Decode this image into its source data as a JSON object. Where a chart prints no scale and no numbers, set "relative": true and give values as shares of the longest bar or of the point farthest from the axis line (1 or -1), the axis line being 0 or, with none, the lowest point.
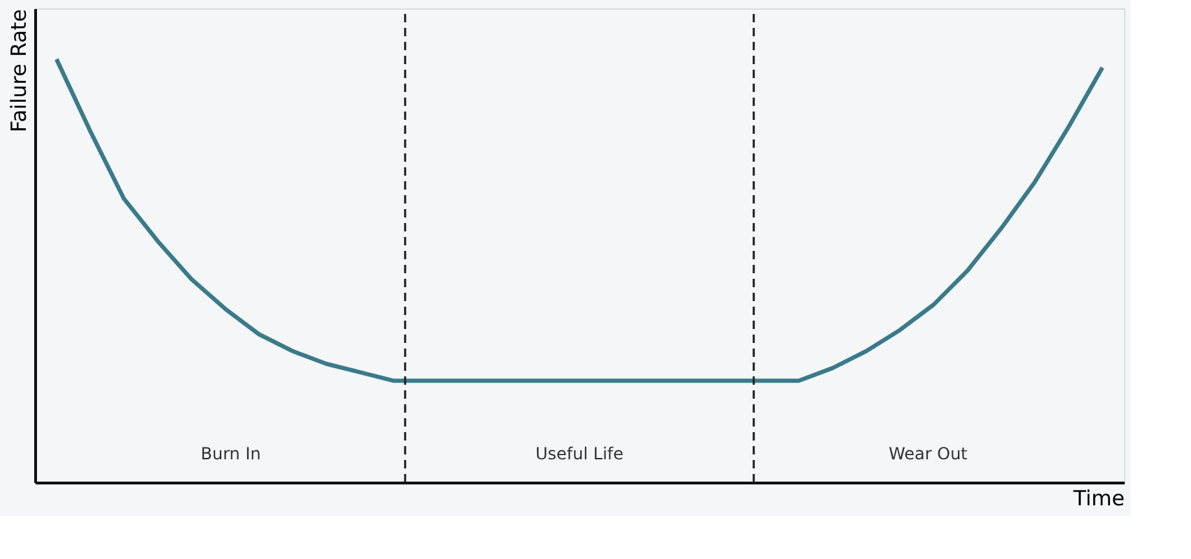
{
  "chart_data": {
    "type": "line",
    "relative": true,
    "xlabel": "Time",
    "ylabel": "Failure Rate",
    "legend": false,
    "marker": "none",
    "line_style": "solid",
    "categories": [
      null,
      null,
      null,
      null,
      null,
      null,
      null,
      null,
      null,
      null,
      null,
      null,
      null,
      null,
      null,
      null,
      null,
      null,
      null,
      null,
      null,
      null,
      null,
      null,
      null,
      null,
      null,
      null,
      null,
      null,
      null,
      null
    ],
    "series": [
      {
        "color": "#3a7a8a",
        "values": [
          1.0,
          0.83,
          0.67,
          0.57,
          0.48,
          0.41,
          0.35,
          0.31,
          0.28,
          0.26,
          0.24,
          0.24,
          0.24,
          0.24,
          0.24,
          0.24,
          0.24,
          0.24,
          0.24,
          0.24,
          0.24,
          0.24,
          0.24,
          0.27,
          0.31,
          0.36,
          0.42,
          0.5,
          0.6,
          0.71,
          0.84,
          0.98
        ]
      }
    ],
    "annotations": [
      "Burn In",
      "Useful Life",
      "Wear Out"
    ]
  }
}
